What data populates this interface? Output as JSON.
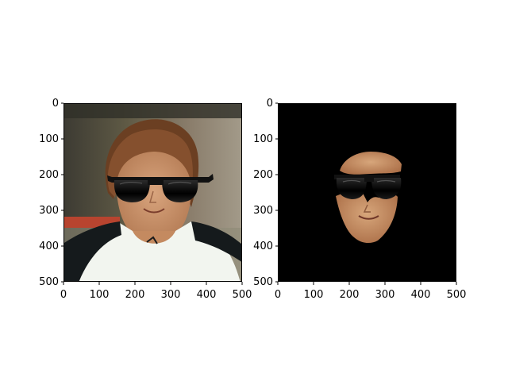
{
  "panels": [
    {
      "name": "left-photo-with-sunglasses",
      "image_desc": "woman with brown hair, white and black shirt, wearing black sunglasses overlay",
      "x_ticks": [
        "0",
        "100",
        "200",
        "300",
        "400",
        "500"
      ],
      "y_ticks": [
        "0",
        "100",
        "200",
        "300",
        "400",
        "500"
      ]
    },
    {
      "name": "right-masked-face",
      "image_desc": "black background with only the face region and sunglasses visible",
      "x_ticks": [
        "0",
        "100",
        "200",
        "300",
        "400",
        "500"
      ],
      "y_ticks": [
        "0",
        "100",
        "200",
        "300",
        "400",
        "500"
      ]
    }
  ]
}
